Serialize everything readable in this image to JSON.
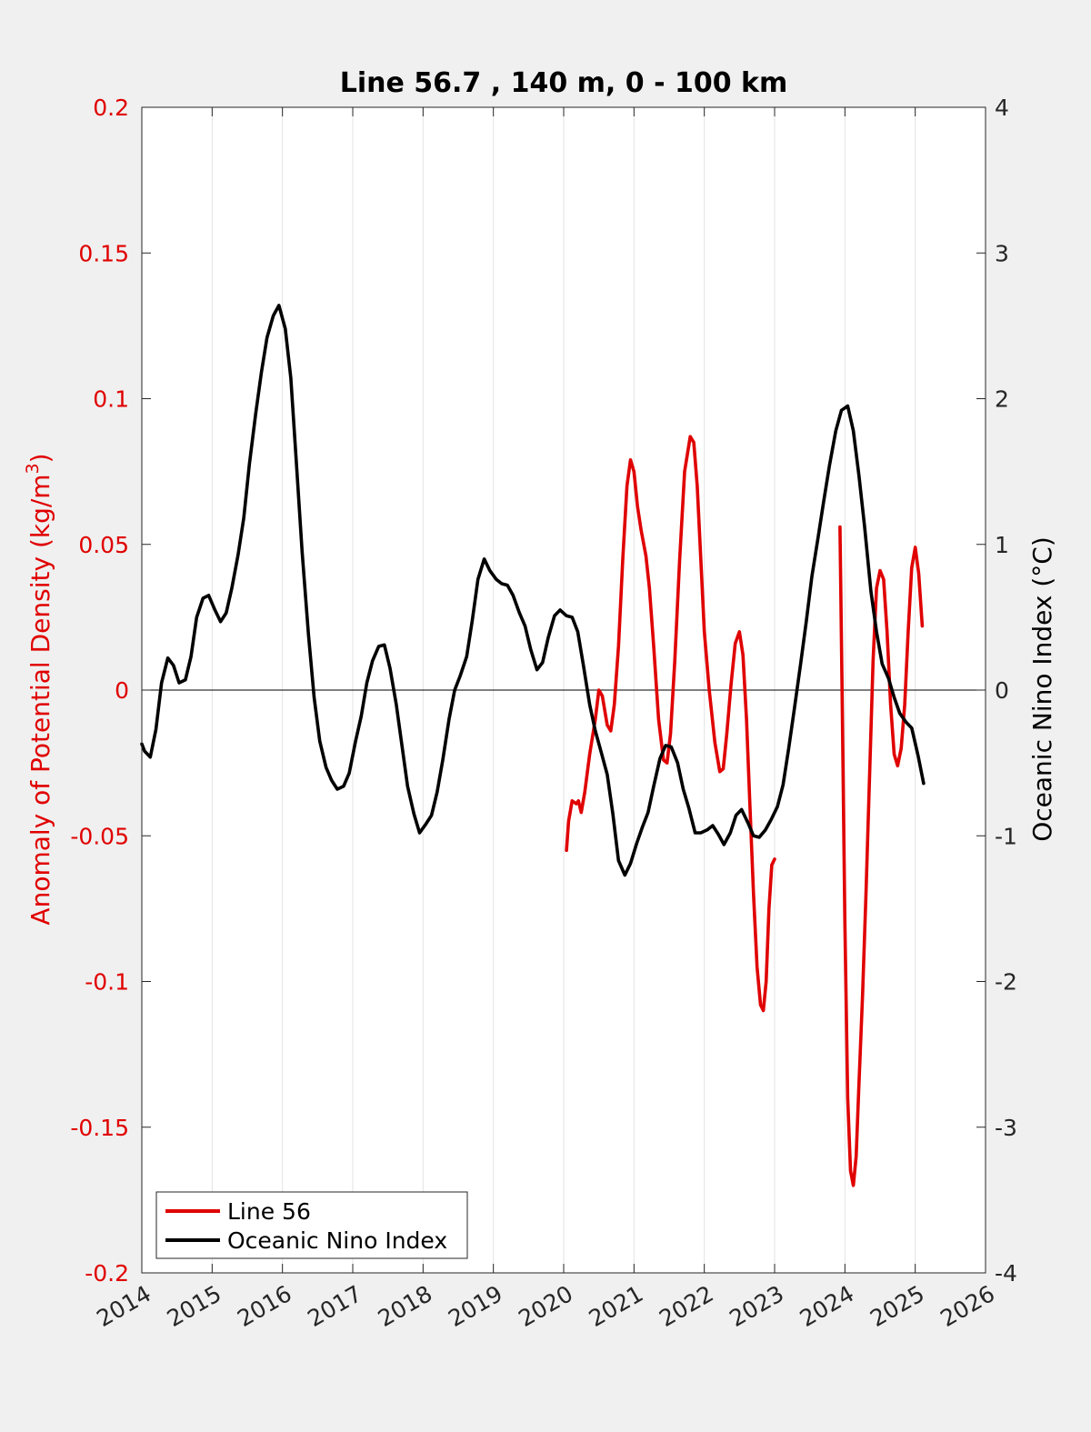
{
  "chart_data": {
    "type": "line",
    "title": "Line 56.7 , 140 m, 0 - 100 km",
    "ylabel_left": "Anomaly of Potential Density (kg/m",
    "ylabel_left_sup": "3",
    "ylabel_left_close": ")",
    "ylabel_right": "Oceanic Nino Index (°C)",
    "xlim": [
      2014,
      2026
    ],
    "ylim_left": [
      -0.2,
      0.2
    ],
    "ylim_right": [
      -4,
      4
    ],
    "x_ticks": [
      2014,
      2015,
      2016,
      2017,
      2018,
      2019,
      2020,
      2021,
      2022,
      2023,
      2024,
      2025,
      2026
    ],
    "y_ticks_left": [
      -0.2,
      -0.15,
      -0.1,
      -0.05,
      0,
      0.05,
      0.1,
      0.15,
      0.2
    ],
    "y_ticks_right": [
      -4,
      -3,
      -2,
      -1,
      0,
      1,
      2,
      3,
      4
    ],
    "x_tick_labels": [
      "2014",
      "2015",
      "2016",
      "2017",
      "2018",
      "2019",
      "2020",
      "2021",
      "2022",
      "2023",
      "2024",
      "2025",
      "2026"
    ],
    "y_tick_labels_left": [
      "-0.2",
      "-0.15",
      "-0.1",
      "-0.05",
      "0",
      "0.05",
      "0.1",
      "0.15",
      "0.2"
    ],
    "y_tick_labels_right": [
      "-4",
      "-3",
      "-2",
      "-1",
      "0",
      "1",
      "2",
      "3",
      "4"
    ],
    "grid": "vertical",
    "legend_position": "bottom-left",
    "colors": {
      "left_axis": "#e00000",
      "line56": "#e00000",
      "oni": "#000000"
    },
    "series": [
      {
        "name": "Line 56",
        "axis": "left",
        "color": "#e00000",
        "segments": [
          [
            [
              2020.04,
              -0.055
            ],
            [
              2020.07,
              -0.045
            ],
            [
              2020.12,
              -0.038
            ],
            [
              2020.18,
              -0.039
            ],
            [
              2020.21,
              -0.038
            ],
            [
              2020.25,
              -0.042
            ],
            [
              2020.3,
              -0.035
            ],
            [
              2020.37,
              -0.022
            ],
            [
              2020.45,
              -0.01
            ],
            [
              2020.5,
              0.0
            ],
            [
              2020.55,
              -0.002
            ],
            [
              2020.62,
              -0.012
            ],
            [
              2020.67,
              -0.014
            ],
            [
              2020.72,
              -0.005
            ],
            [
              2020.78,
              0.015
            ],
            [
              2020.84,
              0.045
            ],
            [
              2020.9,
              0.07
            ],
            [
              2020.95,
              0.079
            ],
            [
              2021.0,
              0.075
            ],
            [
              2021.05,
              0.063
            ],
            [
              2021.1,
              0.055
            ],
            [
              2021.17,
              0.046
            ],
            [
              2021.22,
              0.035
            ],
            [
              2021.28,
              0.015
            ],
            [
              2021.35,
              -0.01
            ],
            [
              2021.42,
              -0.024
            ],
            [
              2021.47,
              -0.025
            ],
            [
              2021.52,
              -0.015
            ],
            [
              2021.58,
              0.01
            ],
            [
              2021.65,
              0.045
            ],
            [
              2021.72,
              0.075
            ],
            [
              2021.8,
              0.087
            ],
            [
              2021.85,
              0.085
            ],
            [
              2021.9,
              0.07
            ],
            [
              2021.95,
              0.045
            ],
            [
              2022.0,
              0.02
            ],
            [
              2022.07,
              0.0
            ],
            [
              2022.15,
              -0.018
            ],
            [
              2022.22,
              -0.028
            ],
            [
              2022.27,
              -0.027
            ],
            [
              2022.32,
              -0.015
            ],
            [
              2022.38,
              0.002
            ],
            [
              2022.44,
              0.016
            ],
            [
              2022.5,
              0.02
            ],
            [
              2022.55,
              0.012
            ],
            [
              2022.6,
              -0.01
            ],
            [
              2022.65,
              -0.04
            ],
            [
              2022.7,
              -0.07
            ],
            [
              2022.75,
              -0.095
            ],
            [
              2022.8,
              -0.108
            ],
            [
              2022.84,
              -0.11
            ],
            [
              2022.88,
              -0.1
            ],
            [
              2022.92,
              -0.075
            ],
            [
              2022.96,
              -0.06
            ],
            [
              2023.0,
              -0.058
            ]
          ],
          [
            [
              2023.93,
              0.056
            ],
            [
              2023.96,
              0.0
            ],
            [
              2024.0,
              -0.08
            ],
            [
              2024.04,
              -0.14
            ],
            [
              2024.08,
              -0.165
            ],
            [
              2024.12,
              -0.17
            ],
            [
              2024.16,
              -0.16
            ],
            [
              2024.2,
              -0.135
            ],
            [
              2024.25,
              -0.105
            ],
            [
              2024.3,
              -0.07
            ],
            [
              2024.35,
              -0.03
            ],
            [
              2024.4,
              0.01
            ],
            [
              2024.45,
              0.035
            ],
            [
              2024.5,
              0.041
            ],
            [
              2024.55,
              0.038
            ],
            [
              2024.6,
              0.02
            ],
            [
              2024.65,
              -0.005
            ],
            [
              2024.7,
              -0.022
            ],
            [
              2024.75,
              -0.026
            ],
            [
              2024.8,
              -0.02
            ],
            [
              2024.85,
              -0.005
            ],
            [
              2024.9,
              0.02
            ],
            [
              2024.95,
              0.042
            ],
            [
              2025.0,
              0.049
            ],
            [
              2025.05,
              0.04
            ],
            [
              2025.1,
              0.022
            ]
          ]
        ]
      },
      {
        "name": "Oceanic Nino Index",
        "axis": "right",
        "color": "#000000",
        "points": [
          [
            2014.0,
            -0.37
          ],
          [
            2014.04,
            -0.42
          ],
          [
            2014.12,
            -0.46
          ],
          [
            2014.2,
            -0.27
          ],
          [
            2014.28,
            0.05
          ],
          [
            2014.37,
            0.22
          ],
          [
            2014.45,
            0.17
          ],
          [
            2014.53,
            0.05
          ],
          [
            2014.62,
            0.07
          ],
          [
            2014.7,
            0.23
          ],
          [
            2014.78,
            0.5
          ],
          [
            2014.87,
            0.63
          ],
          [
            2014.95,
            0.65
          ],
          [
            2015.04,
            0.55
          ],
          [
            2015.12,
            0.47
          ],
          [
            2015.2,
            0.53
          ],
          [
            2015.28,
            0.7
          ],
          [
            2015.37,
            0.93
          ],
          [
            2015.45,
            1.18
          ],
          [
            2015.53,
            1.55
          ],
          [
            2015.62,
            1.9
          ],
          [
            2015.7,
            2.18
          ],
          [
            2015.78,
            2.42
          ],
          [
            2015.87,
            2.57
          ],
          [
            2015.95,
            2.64
          ],
          [
            2016.04,
            2.48
          ],
          [
            2016.12,
            2.14
          ],
          [
            2016.2,
            1.55
          ],
          [
            2016.28,
            0.95
          ],
          [
            2016.37,
            0.38
          ],
          [
            2016.45,
            -0.05
          ],
          [
            2016.53,
            -0.35
          ],
          [
            2016.62,
            -0.53
          ],
          [
            2016.7,
            -0.62
          ],
          [
            2016.78,
            -0.68
          ],
          [
            2016.87,
            -0.66
          ],
          [
            2016.95,
            -0.57
          ],
          [
            2017.04,
            -0.35
          ],
          [
            2017.12,
            -0.18
          ],
          [
            2017.2,
            0.05
          ],
          [
            2017.28,
            0.2
          ],
          [
            2017.37,
            0.3
          ],
          [
            2017.45,
            0.31
          ],
          [
            2017.53,
            0.15
          ],
          [
            2017.62,
            -0.1
          ],
          [
            2017.7,
            -0.38
          ],
          [
            2017.78,
            -0.66
          ],
          [
            2017.87,
            -0.85
          ],
          [
            2017.95,
            -0.98
          ],
          [
            2018.04,
            -0.92
          ],
          [
            2018.12,
            -0.86
          ],
          [
            2018.2,
            -0.7
          ],
          [
            2018.28,
            -0.48
          ],
          [
            2018.37,
            -0.2
          ],
          [
            2018.45,
            0.0
          ],
          [
            2018.53,
            0.1
          ],
          [
            2018.62,
            0.23
          ],
          [
            2018.7,
            0.48
          ],
          [
            2018.78,
            0.76
          ],
          [
            2018.87,
            0.9
          ],
          [
            2018.95,
            0.82
          ],
          [
            2019.04,
            0.76
          ],
          [
            2019.12,
            0.73
          ],
          [
            2019.2,
            0.72
          ],
          [
            2019.28,
            0.65
          ],
          [
            2019.37,
            0.53
          ],
          [
            2019.45,
            0.44
          ],
          [
            2019.53,
            0.28
          ],
          [
            2019.62,
            0.14
          ],
          [
            2019.7,
            0.19
          ],
          [
            2019.78,
            0.36
          ],
          [
            2019.87,
            0.51
          ],
          [
            2019.95,
            0.55
          ],
          [
            2020.04,
            0.51
          ],
          [
            2020.12,
            0.5
          ],
          [
            2020.2,
            0.4
          ],
          [
            2020.28,
            0.17
          ],
          [
            2020.37,
            -0.1
          ],
          [
            2020.45,
            -0.28
          ],
          [
            2020.53,
            -0.42
          ],
          [
            2020.62,
            -0.58
          ],
          [
            2020.7,
            -0.85
          ],
          [
            2020.78,
            -1.17
          ],
          [
            2020.87,
            -1.27
          ],
          [
            2020.95,
            -1.19
          ],
          [
            2021.04,
            -1.05
          ],
          [
            2021.12,
            -0.94
          ],
          [
            2021.2,
            -0.84
          ],
          [
            2021.28,
            -0.66
          ],
          [
            2021.37,
            -0.47
          ],
          [
            2021.45,
            -0.38
          ],
          [
            2021.53,
            -0.39
          ],
          [
            2021.62,
            -0.5
          ],
          [
            2021.7,
            -0.68
          ],
          [
            2021.78,
            -0.81
          ],
          [
            2021.87,
            -0.98
          ],
          [
            2021.95,
            -0.98
          ],
          [
            2022.04,
            -0.96
          ],
          [
            2022.12,
            -0.93
          ],
          [
            2022.2,
            -0.99
          ],
          [
            2022.28,
            -1.06
          ],
          [
            2022.37,
            -0.98
          ],
          [
            2022.45,
            -0.86
          ],
          [
            2022.53,
            -0.82
          ],
          [
            2022.62,
            -0.91
          ],
          [
            2022.7,
            -1.0
          ],
          [
            2022.78,
            -1.01
          ],
          [
            2022.87,
            -0.96
          ],
          [
            2022.95,
            -0.89
          ],
          [
            2023.04,
            -0.8
          ],
          [
            2023.12,
            -0.65
          ],
          [
            2023.2,
            -0.4
          ],
          [
            2023.28,
            -0.13
          ],
          [
            2023.37,
            0.18
          ],
          [
            2023.45,
            0.47
          ],
          [
            2023.53,
            0.78
          ],
          [
            2023.62,
            1.05
          ],
          [
            2023.7,
            1.3
          ],
          [
            2023.78,
            1.54
          ],
          [
            2023.87,
            1.78
          ],
          [
            2023.95,
            1.92
          ],
          [
            2024.04,
            1.95
          ],
          [
            2024.12,
            1.78
          ],
          [
            2024.2,
            1.47
          ],
          [
            2024.28,
            1.12
          ],
          [
            2024.37,
            0.68
          ],
          [
            2024.45,
            0.4
          ],
          [
            2024.53,
            0.18
          ],
          [
            2024.62,
            0.08
          ],
          [
            2024.7,
            -0.05
          ],
          [
            2024.78,
            -0.16
          ],
          [
            2024.87,
            -0.22
          ],
          [
            2024.95,
            -0.26
          ],
          [
            2025.04,
            -0.45
          ],
          [
            2025.12,
            -0.64
          ]
        ]
      }
    ]
  }
}
